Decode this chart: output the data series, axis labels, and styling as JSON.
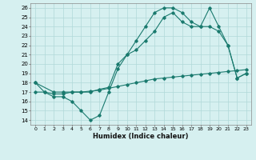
{
  "line1_x": [
    0,
    1,
    2,
    3,
    4,
    5,
    6,
    7,
    8,
    9,
    10,
    11,
    12,
    13,
    14,
    15,
    16,
    17,
    18,
    19,
    20,
    21,
    22,
    23
  ],
  "line1_y": [
    18,
    17,
    16.5,
    16.5,
    16,
    15,
    14,
    14.5,
    17,
    19.5,
    21,
    22.5,
    24,
    25.5,
    26,
    26,
    25.5,
    24.5,
    24,
    26,
    24,
    22,
    18.5,
    19
  ],
  "line2_x": [
    0,
    2,
    3,
    4,
    5,
    6,
    7,
    8,
    9,
    10,
    11,
    12,
    13,
    14,
    15,
    16,
    17,
    18,
    19,
    20,
    21,
    22,
    23
  ],
  "line2_y": [
    18,
    17,
    17,
    17,
    17,
    17,
    17.3,
    17.5,
    20,
    21,
    21.5,
    22.5,
    23.5,
    25,
    25.5,
    24.5,
    24,
    24,
    24,
    23.5,
    22,
    18.5,
    19
  ],
  "line3_x": [
    0,
    1,
    2,
    3,
    4,
    5,
    6,
    7,
    8,
    9,
    10,
    11,
    12,
    13,
    14,
    15,
    16,
    17,
    18,
    19,
    20,
    21,
    22,
    23
  ],
  "line3_y": [
    17.0,
    17.0,
    16.8,
    16.8,
    17.0,
    17.0,
    17.1,
    17.2,
    17.4,
    17.6,
    17.8,
    18.0,
    18.2,
    18.4,
    18.5,
    18.6,
    18.7,
    18.8,
    18.9,
    19.0,
    19.1,
    19.2,
    19.3,
    19.4
  ],
  "line_color": "#1a7a6e",
  "bg_color": "#d6f0f0",
  "grid_color": "#b0d8d8",
  "xlabel": "Humidex (Indice chaleur)",
  "xlim": [
    -0.5,
    23.5
  ],
  "ylim": [
    13.5,
    26.5
  ],
  "xticks": [
    0,
    1,
    2,
    3,
    4,
    5,
    6,
    7,
    8,
    9,
    10,
    11,
    12,
    13,
    14,
    15,
    16,
    17,
    18,
    19,
    20,
    21,
    22,
    23
  ],
  "yticks": [
    14,
    15,
    16,
    17,
    18,
    19,
    20,
    21,
    22,
    23,
    24,
    25,
    26
  ]
}
